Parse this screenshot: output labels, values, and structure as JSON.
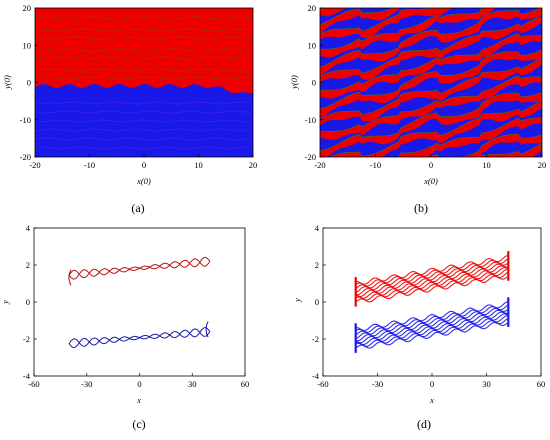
{
  "colors": {
    "red": "#ee0000",
    "blue": "#1818e8",
    "green": "#3c7a1e",
    "dark_red": "#b61414",
    "dark_blue": "#1a1aa8"
  },
  "chart_data": [
    {
      "type": "heatmap",
      "caption": "(a)",
      "xlabel": "x(0)",
      "ylabel": "y(0)",
      "xlim": [
        -20,
        20
      ],
      "ylim": [
        -20,
        20
      ],
      "xticks": [
        "-20",
        "-10",
        "0",
        "10",
        "20"
      ],
      "yticks": [
        "-20",
        "-10",
        "0",
        "10",
        "20"
      ],
      "legend": "none",
      "regions": [
        {
          "name": "red",
          "y_range": [
            -2,
            20
          ]
        },
        {
          "name": "blue",
          "y_range": [
            -20,
            -2
          ]
        }
      ]
    },
    {
      "type": "heatmap",
      "caption": "(b)",
      "xlabel": "x(0)",
      "ylabel": "y(0)",
      "xlim": [
        -20,
        20
      ],
      "ylim": [
        -20,
        20
      ],
      "xticks": [
        "-20",
        "-10",
        "0",
        "10",
        "20"
      ],
      "yticks": [
        "-20",
        "-10",
        "0",
        "10",
        "20"
      ],
      "legend": "none",
      "pattern": "interleaved diagonal red and blue bands"
    },
    {
      "type": "line",
      "caption": "(c)",
      "xlabel": "x",
      "ylabel": "y",
      "xlim": [
        -60,
        60
      ],
      "ylim": [
        -4,
        4
      ],
      "xticks": [
        "-60",
        "-30",
        "0",
        "30",
        "60"
      ],
      "yticks": [
        "-4",
        "-2",
        "0",
        "2",
        "4"
      ],
      "legend": "none",
      "series": [
        {
          "color": "red",
          "x_range": [
            -40,
            40
          ],
          "y_start": 1.45,
          "y_end": 2.2,
          "oscillation": 0.25
        },
        {
          "color": "blue",
          "x_range": [
            -40,
            40
          ],
          "y_start": -2.25,
          "y_end": -1.6,
          "oscillation": 0.25
        }
      ]
    },
    {
      "type": "line",
      "caption": "(d)",
      "xlabel": "x",
      "ylabel": "y",
      "xlim": [
        -60,
        60
      ],
      "ylim": [
        -4,
        4
      ],
      "xticks": [
        "-60",
        "-30",
        "0",
        "30",
        "60"
      ],
      "yticks": [
        "-4",
        "-2",
        "0",
        "2",
        "4"
      ],
      "legend": "none",
      "series": [
        {
          "color": "red",
          "x_range": [
            -42,
            42
          ],
          "y_start": 0.5,
          "y_end": 1.9,
          "band": 1.0
        },
        {
          "color": "blue",
          "x_range": [
            -42,
            42
          ],
          "y_start": -2.0,
          "y_end": -0.6,
          "band": 1.0
        }
      ]
    }
  ]
}
